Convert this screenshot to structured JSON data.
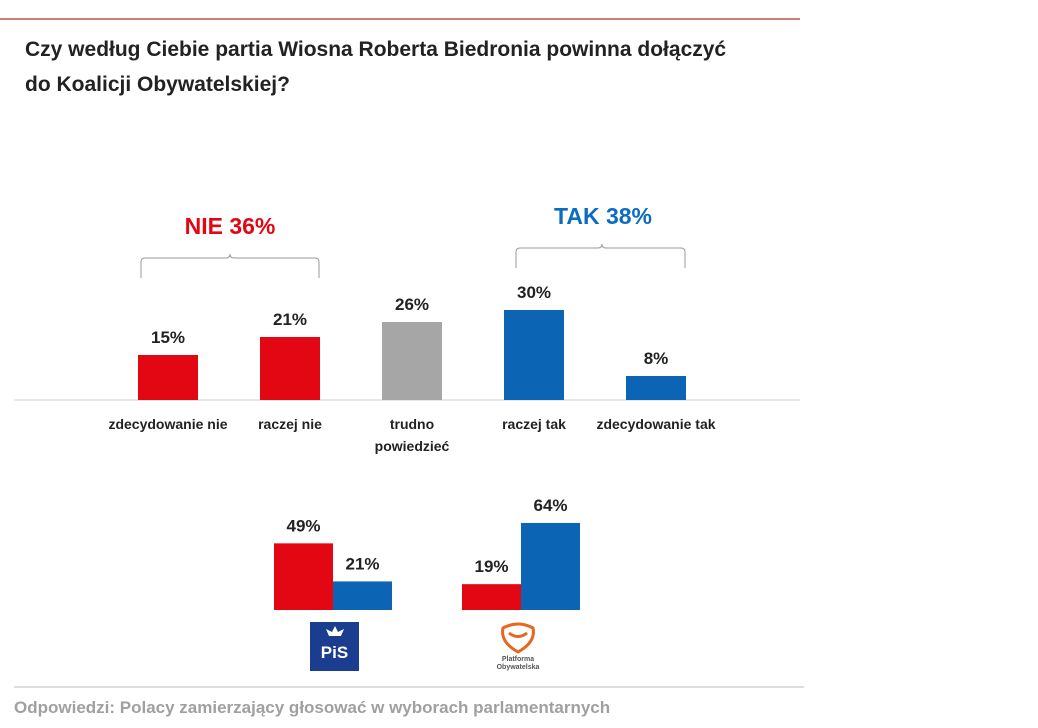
{
  "chart_data": [
    {
      "type": "bar",
      "title": [
        "Czy według Ciebie partia Wiosna Roberta Biedronia powinna dołączyć",
        "do Koalicji Obywatelskiej?"
      ],
      "categories": [
        "zdecydowanie nie",
        "raczej nie",
        "trudno powiedzieć",
        "raczej tak",
        "zdecydowanie tak"
      ],
      "values": [
        15,
        21,
        26,
        30,
        8
      ],
      "value_labels": [
        "15%",
        "21%",
        "26%",
        "30%",
        "8%"
      ],
      "colors": [
        "#e30613",
        "#e30613",
        "#a6a6a6",
        "#0b64b4",
        "#0b64b4"
      ],
      "annotations": [
        {
          "text": "NIE 36%",
          "color": "#e30613"
        },
        {
          "text": "TAK 38%",
          "color": "#0b6cc0"
        }
      ],
      "footnote": "Odpowiedzi: Polacy zamierzający głosować w wyborach parlamentarnych"
    },
    {
      "type": "grouped-bar",
      "categories": [
        "PiS",
        "Platforma Obywatelska"
      ],
      "series": [
        {
          "color": "#e30613",
          "values": [
            49,
            19
          ],
          "value_labels": [
            "49%",
            "19%"
          ]
        },
        {
          "color": "#0b64b4",
          "values": [
            21,
            64
          ],
          "value_labels": [
            "21%",
            "64%"
          ]
        }
      ]
    }
  ]
}
